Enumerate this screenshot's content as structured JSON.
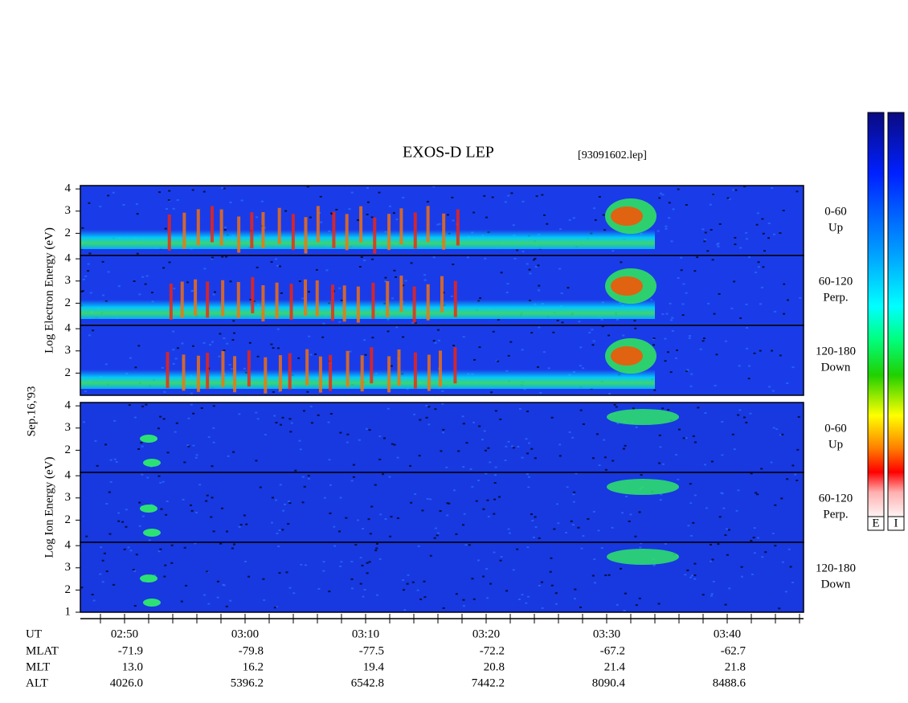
{
  "title": "EXOS-D LEP",
  "file": "[93091602.lep]",
  "date": "Sep.16,'93",
  "groups": [
    {
      "label": "Log Electron Energy (eV)"
    },
    {
      "label": "Log Ion Energy (eV)"
    }
  ],
  "ylim": [
    1,
    4.15
  ],
  "panels": [
    {
      "group": 0,
      "angle": "0-60",
      "direction": "Up",
      "yticks": [
        2,
        3,
        4
      ]
    },
    {
      "group": 0,
      "angle": "60-120",
      "direction": "Perp.",
      "yticks": [
        2,
        3,
        4
      ]
    },
    {
      "group": 0,
      "angle": "120-180",
      "direction": "Down",
      "yticks": [
        2,
        3,
        4
      ]
    },
    {
      "group": 1,
      "angle": "0-60",
      "direction": "Up",
      "yticks": [
        2,
        3,
        4
      ]
    },
    {
      "group": 1,
      "angle": "60-120",
      "direction": "Perp.",
      "yticks": [
        2,
        3,
        4
      ]
    },
    {
      "group": 1,
      "angle": "120-180",
      "direction": "Down",
      "yticks": [
        1,
        2,
        3,
        4
      ]
    }
  ],
  "xaxis": {
    "xlim": [
      166.333,
      226.333
    ],
    "ticks": [
      {
        "value": 170,
        "label": "02:50"
      },
      {
        "value": 180,
        "label": "03:00"
      },
      {
        "value": 190,
        "label": "03:10"
      },
      {
        "value": 200,
        "label": "03:20"
      },
      {
        "value": 210,
        "label": "03:30"
      },
      {
        "value": 220,
        "label": "03:40"
      }
    ],
    "minor_ticks": [
      168,
      172,
      174,
      176,
      178,
      182,
      184,
      186,
      188,
      192,
      194,
      196,
      198,
      202,
      204,
      206,
      208,
      212,
      214,
      216,
      218,
      222,
      224,
      226
    ]
  },
  "table": {
    "ut_label": "UT",
    "rows": [
      {
        "label": "MLAT",
        "values": [
          "-71.9",
          "-79.8",
          "-77.5",
          "-72.2",
          "-67.2",
          "-62.7"
        ]
      },
      {
        "label": "MLT",
        "values": [
          "13.0",
          "16.2",
          "19.4",
          "20.8",
          "21.4",
          "21.8"
        ]
      },
      {
        "label": "ALT",
        "values": [
          "4026.0",
          "5396.2",
          "6542.8",
          "7442.2",
          "8090.4",
          "8488.6"
        ]
      }
    ]
  },
  "colorbar_labels": [
    "E",
    "I"
  ]
}
